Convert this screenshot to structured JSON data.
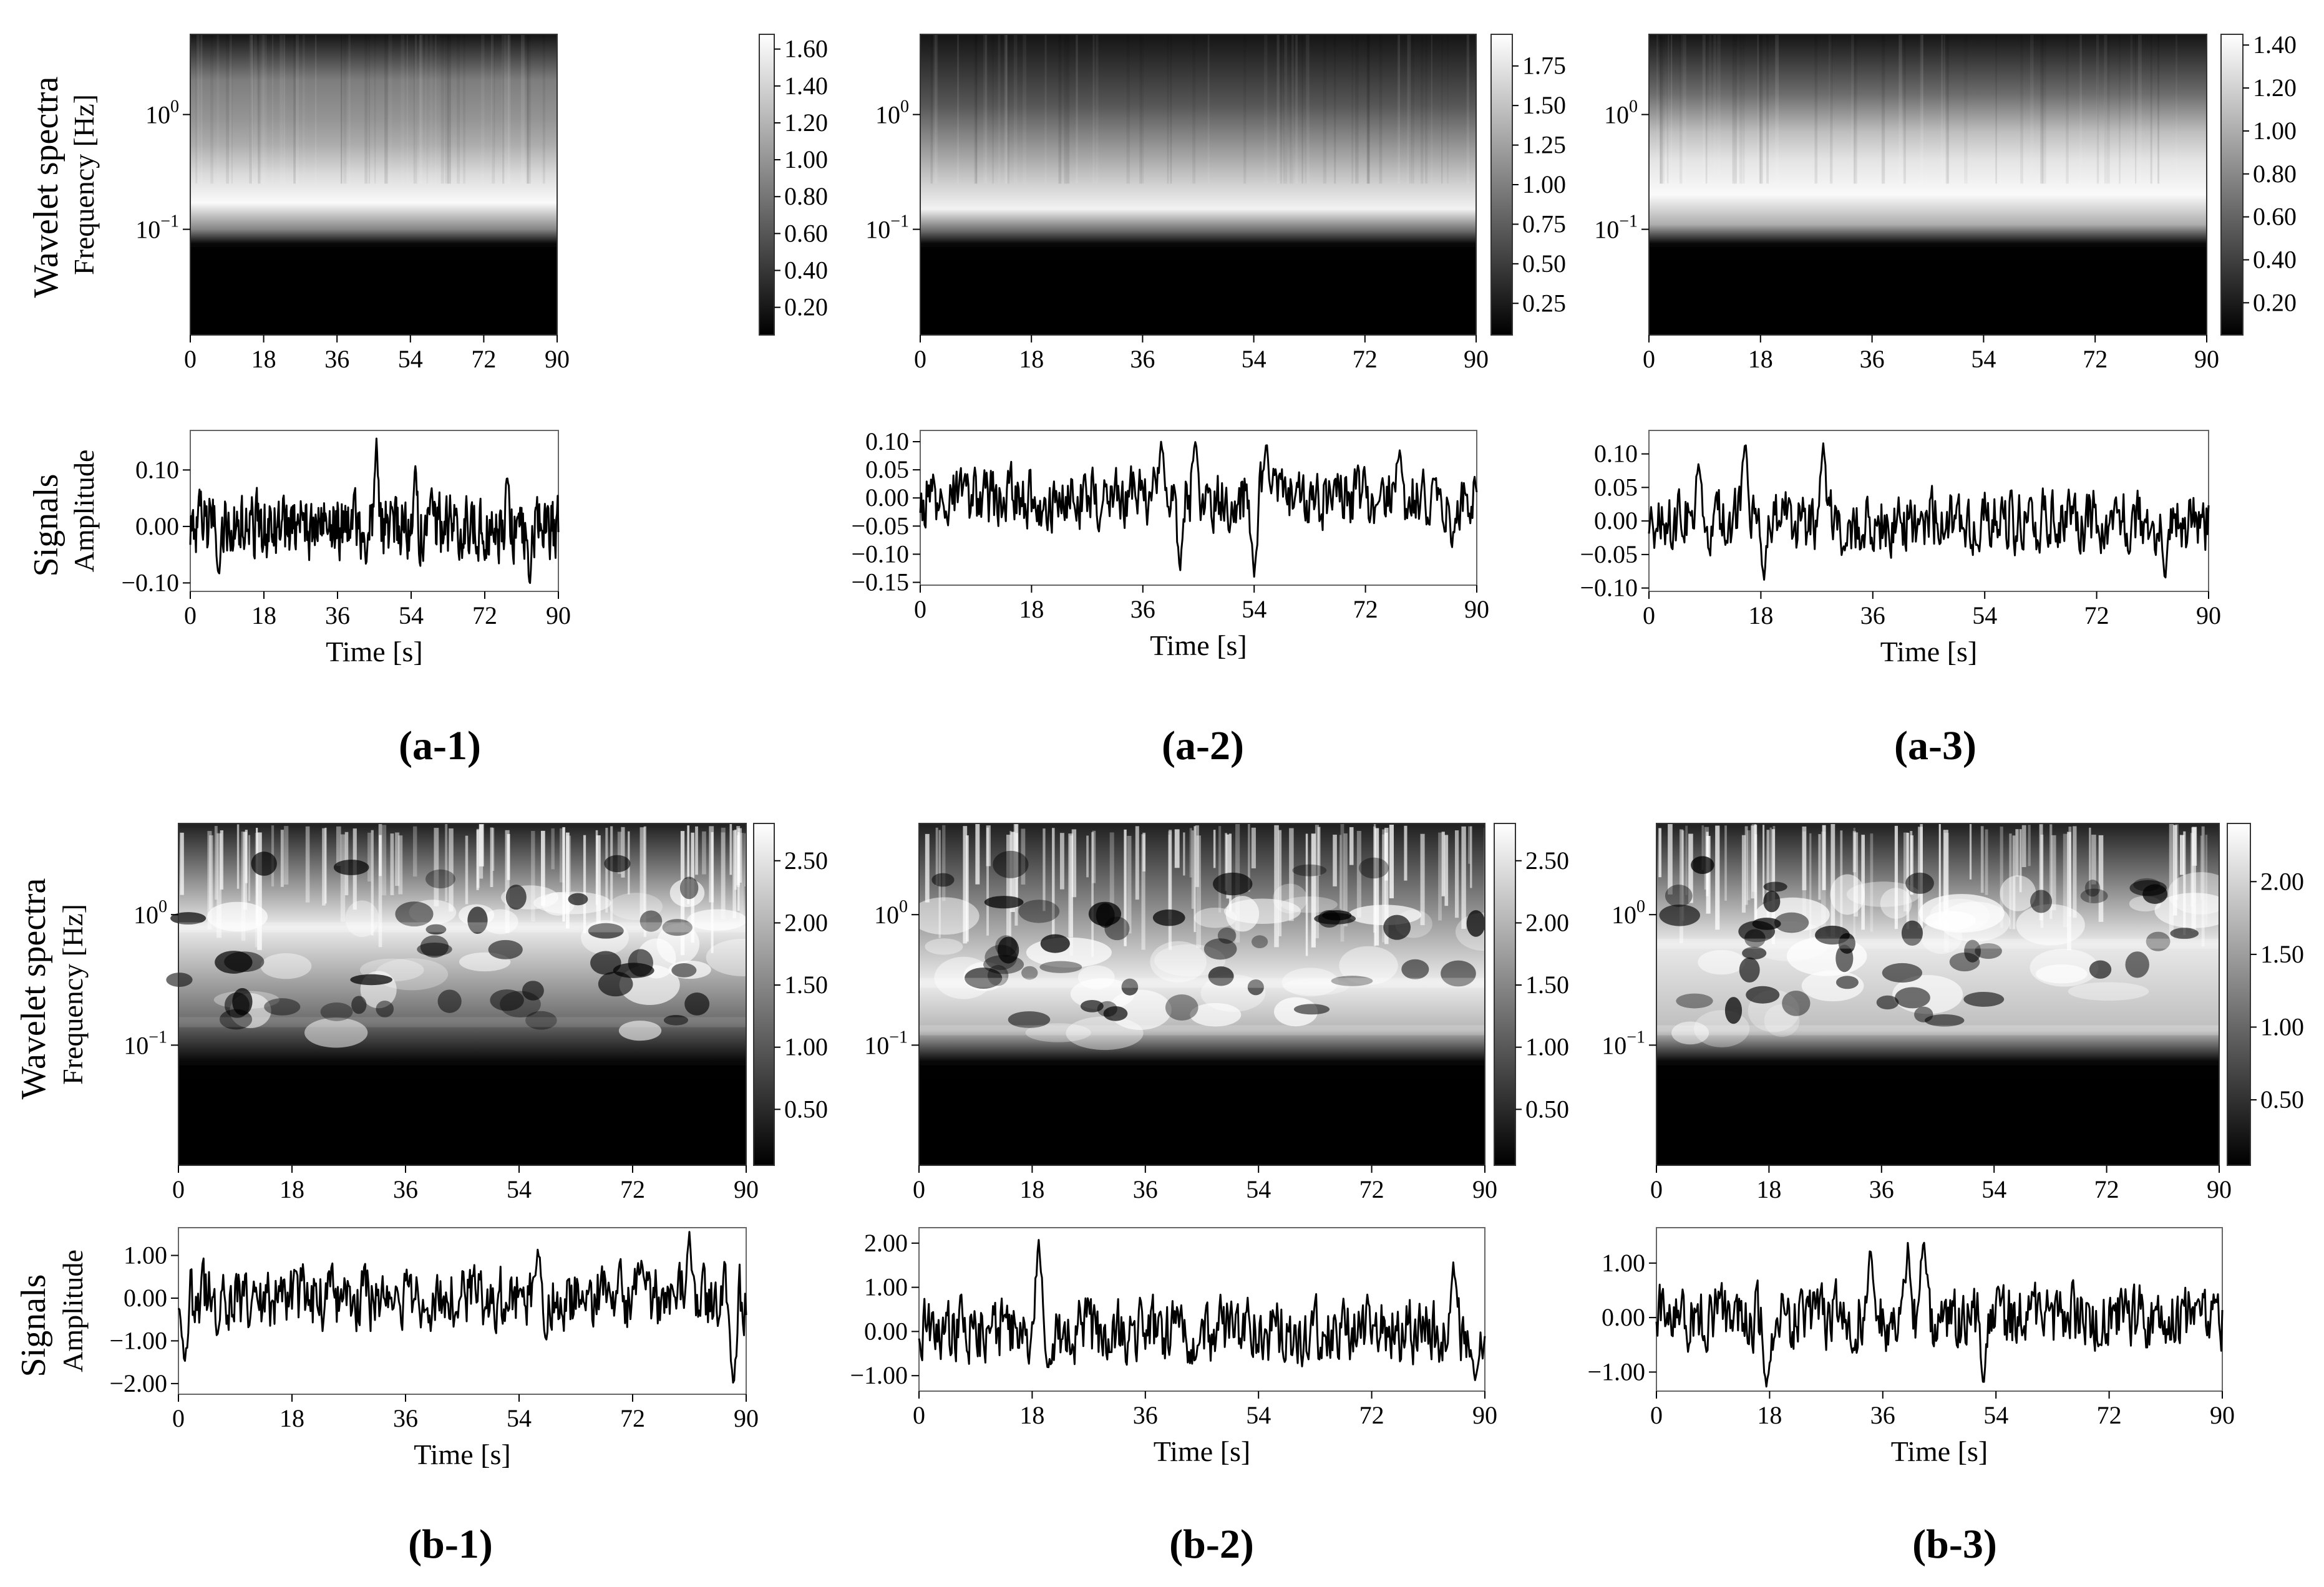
{
  "figure": {
    "row_labels": {
      "top": "Wavelet spectra",
      "bottom": "Signals"
    },
    "panel_labels": [
      "(a-1)",
      "(a-2)",
      "(a-3)",
      "(b-1)",
      "(b-2)",
      "(b-3)"
    ],
    "spectrum_ylabel": "Frequency [Hz]",
    "signal_ylabel": "Amplitude",
    "xlabel": "Time [s]",
    "colors": {
      "line": "#000000",
      "axis": "#444444",
      "background": "#ffffff"
    }
  },
  "chart_data": [
    {
      "id": "a-1",
      "panel_label": "(a-1)",
      "spectrum": {
        "type": "heatmap",
        "xlabel": "",
        "ylabel": "Frequency [Hz]",
        "xlim": [
          0,
          90
        ],
        "x_ticks": [
          0,
          18,
          36,
          54,
          72,
          90
        ],
        "y_scale": "log",
        "y_ticks": [
          "10^0",
          "10^-1"
        ],
        "ylim_hz": [
          0.012,
          5
        ],
        "colorbar": {
          "ticks": [
            "1.60",
            "1.40",
            "1.20",
            "1.00",
            "0.80",
            "0.60",
            "0.40",
            "0.20"
          ],
          "range": [
            0.05,
            1.68
          ]
        },
        "pattern": "banded",
        "bands": [
          {
            "freq_hz": 2.0,
            "value": 0.85
          },
          {
            "freq_hz": 0.9,
            "value": 1.0
          },
          {
            "freq_hz": 0.55,
            "value": 1.15
          },
          {
            "freq_hz": 0.3,
            "value": 1.45
          },
          {
            "freq_hz": 0.17,
            "value": 1.65
          },
          {
            "freq_hz": 0.1,
            "value": 0.9
          }
        ]
      },
      "signal": {
        "type": "line",
        "xlabel": "Time [s]",
        "ylabel": "Amplitude",
        "xlim": [
          0,
          90
        ],
        "x_ticks": [
          0,
          18,
          36,
          54,
          72,
          90
        ],
        "ylim": [
          -0.115,
          0.17
        ],
        "y_ticks": [
          0.1,
          0.0,
          -0.1
        ],
        "y_tick_labels": [
          "0.10",
          "0.00",
          "−0.10"
        ],
        "peaks": [
          {
            "t": 45.5,
            "v": 0.16
          },
          {
            "t": 55.0,
            "v": 0.11
          },
          {
            "t": 59.0,
            "v": 0.07
          },
          {
            "t": 77.5,
            "v": 0.09
          }
        ],
        "troughs": [
          {
            "t": 7.0,
            "v": -0.09
          },
          {
            "t": 43.0,
            "v": -0.075
          },
          {
            "t": 83.0,
            "v": -0.105
          }
        ]
      }
    },
    {
      "id": "a-2",
      "panel_label": "(a-2)",
      "spectrum": {
        "type": "heatmap",
        "xlabel": "",
        "ylabel": "",
        "xlim": [
          0,
          90
        ],
        "x_ticks": [
          0,
          18,
          36,
          54,
          72,
          90
        ],
        "y_scale": "log",
        "y_ticks": [
          "10^0",
          "10^-1"
        ],
        "ylim_hz": [
          0.012,
          5
        ],
        "colorbar": {
          "ticks": [
            "1.75",
            "1.50",
            "1.25",
            "1.00",
            "0.75",
            "0.50",
            "0.25"
          ],
          "range": [
            0.05,
            1.95
          ]
        },
        "pattern": "banded",
        "bands": [
          {
            "freq_hz": 1.2,
            "value": 0.7
          },
          {
            "freq_hz": 0.5,
            "value": 1.2
          },
          {
            "freq_hz": 0.25,
            "value": 1.6
          },
          {
            "freq_hz": 0.15,
            "value": 1.85
          },
          {
            "freq_hz": 0.095,
            "value": 0.8
          }
        ]
      },
      "signal": {
        "type": "line",
        "xlabel": "Time [s]",
        "ylabel": "",
        "xlim": [
          0,
          90
        ],
        "x_ticks": [
          0,
          18,
          36,
          54,
          72,
          90
        ],
        "ylim": [
          -0.155,
          0.12
        ],
        "y_ticks": [
          0.1,
          0.05,
          0.0,
          -0.05,
          -0.1,
          -0.15
        ],
        "y_tick_labels": [
          "0.10",
          "0.05",
          "0.00",
          "−0.05",
          "−0.10",
          "−0.15"
        ],
        "peaks": [
          {
            "t": 39.0,
            "v": 0.105
          },
          {
            "t": 44.5,
            "v": 0.1
          },
          {
            "t": 56.0,
            "v": 0.1
          },
          {
            "t": 77.5,
            "v": 0.09
          }
        ],
        "troughs": [
          {
            "t": 42.0,
            "v": -0.135
          },
          {
            "t": 54.0,
            "v": -0.14
          },
          {
            "t": 86.0,
            "v": -0.09
          }
        ]
      }
    },
    {
      "id": "a-3",
      "panel_label": "(a-3)",
      "spectrum": {
        "type": "heatmap",
        "xlabel": "",
        "ylabel": "",
        "xlim": [
          0,
          90
        ],
        "x_ticks": [
          0,
          18,
          36,
          54,
          72,
          90
        ],
        "y_scale": "log",
        "y_ticks": [
          "10^0",
          "10^-1"
        ],
        "ylim_hz": [
          0.012,
          5
        ],
        "colorbar": {
          "ticks": [
            "1.40",
            "1.20",
            "1.00",
            "0.80",
            "0.60",
            "0.40",
            "0.20"
          ],
          "range": [
            0.05,
            1.45
          ]
        },
        "pattern": "banded",
        "bands": [
          {
            "freq_hz": 1.5,
            "value": 0.65
          },
          {
            "freq_hz": 0.7,
            "value": 1.1
          },
          {
            "freq_hz": 0.4,
            "value": 1.3
          },
          {
            "freq_hz": 0.2,
            "value": 1.42
          },
          {
            "freq_hz": 0.11,
            "value": 1.0
          }
        ]
      },
      "signal": {
        "type": "line",
        "xlabel": "Time [s]",
        "ylabel": "",
        "xlim": [
          0,
          90
        ],
        "x_ticks": [
          0,
          18,
          36,
          54,
          72,
          90
        ],
        "ylim": [
          -0.105,
          0.135
        ],
        "y_ticks": [
          0.1,
          0.05,
          0.0,
          -0.05,
          -0.1
        ],
        "y_tick_labels": [
          "0.10",
          "0.05",
          "0.00",
          "−0.05",
          "−0.10"
        ],
        "peaks": [
          {
            "t": 15.5,
            "v": 0.125
          },
          {
            "t": 28.0,
            "v": 0.12
          },
          {
            "t": 8.0,
            "v": 0.09
          }
        ],
        "troughs": [
          {
            "t": 18.5,
            "v": -0.09
          },
          {
            "t": 83.0,
            "v": -0.09
          }
        ]
      }
    },
    {
      "id": "b-1",
      "panel_label": "(b-1)",
      "spectrum": {
        "type": "heatmap",
        "xlabel": "",
        "ylabel": "Frequency [Hz]",
        "xlim": [
          0,
          90
        ],
        "x_ticks": [
          0,
          18,
          36,
          54,
          72,
          90
        ],
        "y_scale": "log",
        "y_ticks": [
          "10^0",
          "10^-1"
        ],
        "ylim_hz": [
          0.012,
          5
        ],
        "colorbar": {
          "ticks": [
            "2.50",
            "2.00",
            "1.50",
            "1.00",
            "0.50"
          ],
          "range": [
            0.05,
            2.8
          ]
        },
        "pattern": "turbulent",
        "bands": [
          {
            "freq_hz": 0.8,
            "value": 2.6
          },
          {
            "freq_hz": 0.15,
            "value": 1.2
          }
        ]
      },
      "signal": {
        "type": "line",
        "xlabel": "Time [s]",
        "ylabel": "Amplitude",
        "xlim": [
          0,
          90
        ],
        "x_ticks": [
          0,
          18,
          36,
          54,
          72,
          90
        ],
        "ylim": [
          -2.25,
          1.65
        ],
        "y_ticks": [
          1.0,
          0.0,
          -1.0,
          -2.0
        ],
        "y_tick_labels": [
          "1.00",
          "0.00",
          "−1.00",
          "−2.00"
        ],
        "peaks": [
          {
            "t": 81.0,
            "v": 1.55
          },
          {
            "t": 57.0,
            "v": 1.25
          }
        ],
        "troughs": [
          {
            "t": 1.0,
            "v": -1.55
          },
          {
            "t": 88.0,
            "v": -2.15
          }
        ]
      }
    },
    {
      "id": "b-2",
      "panel_label": "(b-2)",
      "spectrum": {
        "type": "heatmap",
        "xlabel": "",
        "ylabel": "",
        "xlim": [
          0,
          90
        ],
        "x_ticks": [
          0,
          18,
          36,
          54,
          72,
          90
        ],
        "y_scale": "log",
        "y_ticks": [
          "10^0",
          "10^-1"
        ],
        "ylim_hz": [
          0.012,
          5
        ],
        "colorbar": {
          "ticks": [
            "2.50",
            "2.00",
            "1.50",
            "1.00",
            "0.50"
          ],
          "range": [
            0.05,
            2.8
          ]
        },
        "pattern": "turbulent",
        "bands": [
          {
            "freq_hz": 0.13,
            "value": 2.0
          },
          {
            "freq_hz": 0.3,
            "value": 2.6
          }
        ]
      },
      "signal": {
        "type": "line",
        "xlabel": "Time [s]",
        "ylabel": "",
        "xlim": [
          0,
          90
        ],
        "x_ticks": [
          0,
          18,
          36,
          54,
          72,
          90
        ],
        "ylim": [
          -1.35,
          2.35
        ],
        "y_ticks": [
          2.0,
          1.0,
          0.0,
          -1.0
        ],
        "y_tick_labels": [
          "2.00",
          "1.00",
          "0.00",
          "−1.00"
        ],
        "peaks": [
          {
            "t": 19.0,
            "v": 2.15
          },
          {
            "t": 85.0,
            "v": 1.6
          }
        ],
        "troughs": [
          {
            "t": 88.5,
            "v": -1.15
          },
          {
            "t": 20.5,
            "v": -0.9
          }
        ]
      }
    },
    {
      "id": "b-3",
      "panel_label": "(b-3)",
      "spectrum": {
        "type": "heatmap",
        "xlabel": "",
        "ylabel": "",
        "xlim": [
          0,
          90
        ],
        "x_ticks": [
          0,
          18,
          36,
          54,
          72,
          90
        ],
        "y_scale": "log",
        "y_ticks": [
          "10^0",
          "10^-1"
        ],
        "ylim_hz": [
          0.012,
          5
        ],
        "colorbar": {
          "ticks": [
            "2.00",
            "1.50",
            "1.00",
            "0.50"
          ],
          "range": [
            0.05,
            2.4
          ]
        },
        "pattern": "turbulent",
        "bands": [
          {
            "freq_hz": 0.13,
            "value": 1.8
          },
          {
            "freq_hz": 0.6,
            "value": 2.2
          }
        ]
      },
      "signal": {
        "type": "line",
        "xlabel": "Time [s]",
        "ylabel": "",
        "xlim": [
          0,
          90
        ],
        "x_ticks": [
          0,
          18,
          36,
          54,
          72,
          90
        ],
        "ylim": [
          -1.35,
          1.65
        ],
        "y_ticks": [
          1.0,
          0.0,
          -1.0
        ],
        "y_tick_labels": [
          "1.00",
          "0.00",
          "−1.00"
        ],
        "peaks": [
          {
            "t": 42.5,
            "v": 1.55
          },
          {
            "t": 40.0,
            "v": 1.4
          },
          {
            "t": 34.0,
            "v": 1.3
          }
        ],
        "troughs": [
          {
            "t": 17.5,
            "v": -1.3
          },
          {
            "t": 52.0,
            "v": -1.25
          }
        ]
      }
    }
  ]
}
